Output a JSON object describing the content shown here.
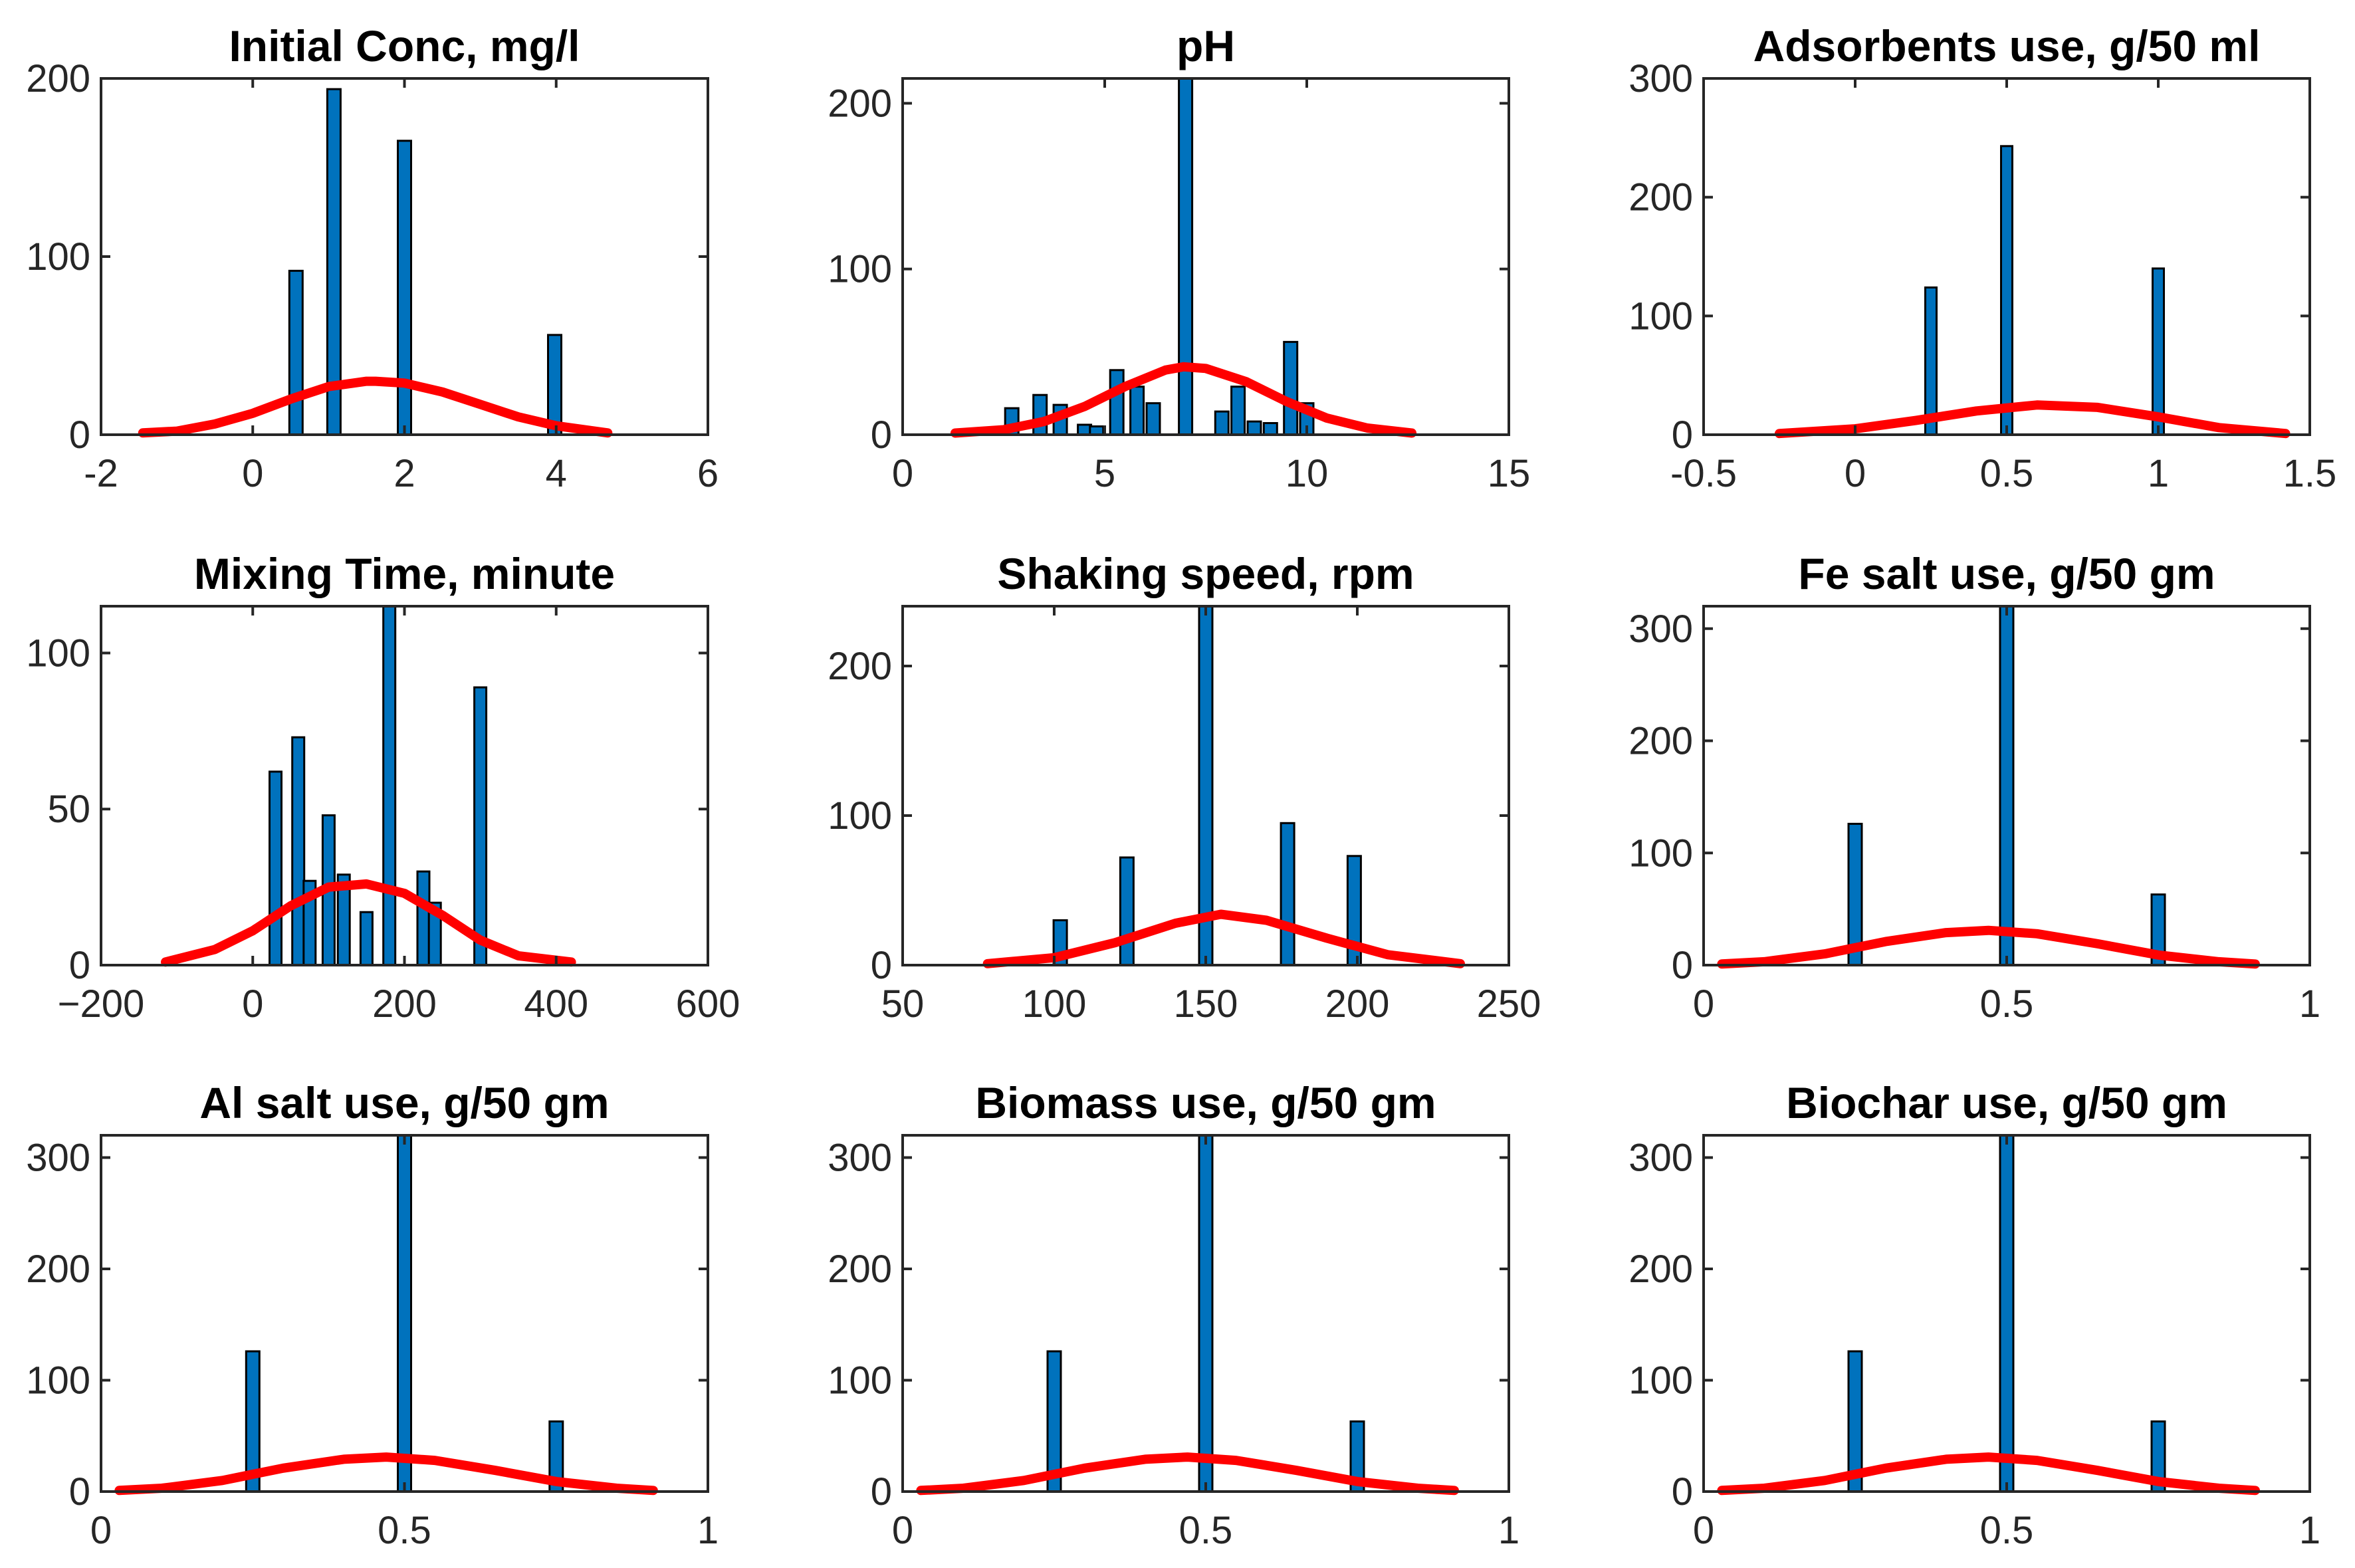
{
  "colors": {
    "bar": "#0072bd",
    "fit_line": "#ff0000",
    "axis": "#262626"
  },
  "chart_data": [
    {
      "type": "bar",
      "title": "Initial Conc, mg/l",
      "xlim": [
        -2,
        6
      ],
      "ylim": [
        0,
        200
      ],
      "xticks": [
        -2,
        0,
        2,
        4,
        6
      ],
      "yticks": [
        0,
        100,
        200
      ],
      "xtick_labels": [
        "-2",
        "0",
        "2",
        "4",
        "6"
      ],
      "ytick_labels": [
        "0",
        "100",
        "200"
      ],
      "bars": [
        {
          "x": 0.57,
          "value": 92
        },
        {
          "x": 1.07,
          "value": 194
        },
        {
          "x": 2.0,
          "value": 165
        },
        {
          "x": 3.98,
          "value": 56
        }
      ],
      "fit": {
        "x": [
          -1.45,
          -1.0,
          -0.5,
          0.0,
          0.5,
          1.0,
          1.5,
          1.62,
          2.0,
          2.5,
          3.0,
          3.5,
          4.0,
          4.68
        ],
        "y": [
          1,
          2,
          6,
          12,
          20,
          27,
          30,
          30,
          29,
          24,
          17,
          10,
          5,
          1
        ]
      }
    },
    {
      "type": "bar",
      "title": "pH",
      "xlim": [
        0,
        15
      ],
      "ylim": [
        0,
        215
      ],
      "xticks": [
        0,
        5,
        10,
        15
      ],
      "yticks": [
        0,
        100,
        200
      ],
      "xtick_labels": [
        "0",
        "5",
        "10",
        "15"
      ],
      "ytick_labels": [
        "0",
        "100",
        "200"
      ],
      "bars": [
        {
          "x": 2.7,
          "value": 16
        },
        {
          "x": 3.4,
          "value": 24
        },
        {
          "x": 3.9,
          "value": 18
        },
        {
          "x": 4.5,
          "value": 6
        },
        {
          "x": 4.8,
          "value": 5
        },
        {
          "x": 5.3,
          "value": 39
        },
        {
          "x": 5.8,
          "value": 29
        },
        {
          "x": 6.2,
          "value": 19
        },
        {
          "x": 7.0,
          "value": 215
        },
        {
          "x": 7.9,
          "value": 14
        },
        {
          "x": 8.3,
          "value": 29
        },
        {
          "x": 8.7,
          "value": 8
        },
        {
          "x": 9.1,
          "value": 7
        },
        {
          "x": 9.6,
          "value": 56
        },
        {
          "x": 10.0,
          "value": 19
        }
      ],
      "fit": {
        "x": [
          1.3,
          2.5,
          3.5,
          4.5,
          5.5,
          6.5,
          6.95,
          7.5,
          8.5,
          9.5,
          10.5,
          11.5,
          12.6
        ],
        "y": [
          1,
          3,
          8,
          17,
          29,
          39,
          41,
          40,
          32,
          20,
          10,
          4,
          1
        ]
      }
    },
    {
      "type": "bar",
      "title": "Adsorbents use, g/50 ml",
      "xlim": [
        -0.5,
        1.5
      ],
      "ylim": [
        0,
        300
      ],
      "xticks": [
        -0.5,
        0,
        0.5,
        1,
        1.5
      ],
      "yticks": [
        0,
        100,
        200,
        300
      ],
      "xtick_labels": [
        "-0.5",
        "0",
        "0.5",
        "1",
        "1.5"
      ],
      "ytick_labels": [
        "0",
        "100",
        "200",
        "300"
      ],
      "bars": [
        {
          "x": 0.25,
          "value": 124
        },
        {
          "x": 0.5,
          "value": 243
        },
        {
          "x": 1.0,
          "value": 140
        }
      ],
      "fit": {
        "x": [
          -0.25,
          0.0,
          0.2,
          0.4,
          0.6,
          0.8,
          1.0,
          1.2,
          1.42
        ],
        "y": [
          1,
          5,
          12,
          20,
          25,
          23,
          15,
          6,
          1
        ]
      }
    },
    {
      "type": "bar",
      "title": "Mixing Time, minute",
      "xlim": [
        -200,
        600
      ],
      "ylim": [
        0,
        115
      ],
      "xticks": [
        -200,
        0,
        200,
        400,
        600
      ],
      "yticks": [
        0,
        50,
        100
      ],
      "xtick_labels": [
        "−200",
        "0",
        "200",
        "400",
        "600"
      ],
      "ytick_labels": [
        "0",
        "50",
        "100"
      ],
      "bars": [
        {
          "x": 30,
          "value": 62
        },
        {
          "x": 60,
          "value": 73
        },
        {
          "x": 75,
          "value": 27
        },
        {
          "x": 100,
          "value": 48
        },
        {
          "x": 120,
          "value": 29
        },
        {
          "x": 150,
          "value": 17
        },
        {
          "x": 180,
          "value": 115
        },
        {
          "x": 225,
          "value": 30
        },
        {
          "x": 240,
          "value": 20
        },
        {
          "x": 300,
          "value": 89
        }
      ],
      "fit": {
        "x": [
          -115,
          -50,
          0,
          50,
          100,
          150,
          200,
          250,
          300,
          350,
          420
        ],
        "y": [
          1,
          5,
          11,
          19,
          25,
          26,
          23,
          16,
          8,
          3,
          1
        ]
      }
    },
    {
      "type": "bar",
      "title": "Shaking speed, rpm",
      "xlim": [
        50,
        250
      ],
      "ylim": [
        0,
        240
      ],
      "xticks": [
        50,
        100,
        150,
        200,
        250
      ],
      "yticks": [
        0,
        100,
        200
      ],
      "xtick_labels": [
        "50",
        "100",
        "150",
        "200",
        "250"
      ],
      "ytick_labels": [
        "0",
        "100",
        "200"
      ],
      "bars": [
        {
          "x": 102,
          "value": 30
        },
        {
          "x": 124,
          "value": 72
        },
        {
          "x": 150,
          "value": 240
        },
        {
          "x": 177,
          "value": 95
        },
        {
          "x": 199,
          "value": 73
        }
      ],
      "fit": {
        "x": [
          78,
          100,
          120,
          140,
          155,
          170,
          190,
          210,
          234
        ],
        "y": [
          1,
          5,
          15,
          28,
          34,
          30,
          18,
          7,
          1
        ]
      }
    },
    {
      "type": "bar",
      "title": "Fe salt use, g/50 gm",
      "xlim": [
        0,
        1
      ],
      "ylim": [
        0,
        320
      ],
      "xticks": [
        0,
        0.5,
        1
      ],
      "yticks": [
        0,
        100,
        200,
        300
      ],
      "xtick_labels": [
        "0",
        "0.5",
        "1"
      ],
      "ytick_labels": [
        "0",
        "100",
        "200",
        "300"
      ],
      "bars": [
        {
          "x": 0.25,
          "value": 126
        },
        {
          "x": 0.5,
          "value": 320
        },
        {
          "x": 0.75,
          "value": 63
        }
      ],
      "fit": {
        "x": [
          0.03,
          0.1,
          0.2,
          0.3,
          0.4,
          0.47,
          0.55,
          0.65,
          0.75,
          0.85,
          0.91
        ],
        "y": [
          1,
          3,
          10,
          21,
          29,
          31,
          28,
          19,
          9,
          3,
          1
        ]
      }
    },
    {
      "type": "bar",
      "title": "Al salt use, g/50 gm",
      "xlim": [
        0,
        1
      ],
      "ylim": [
        0,
        320
      ],
      "xticks": [
        0,
        0.5,
        1
      ],
      "yticks": [
        0,
        100,
        200,
        300
      ],
      "xtick_labels": [
        "0",
        "0.5",
        "1"
      ],
      "ytick_labels": [
        "0",
        "100",
        "200",
        "300"
      ],
      "bars": [
        {
          "x": 0.25,
          "value": 126
        },
        {
          "x": 0.5,
          "value": 320
        },
        {
          "x": 0.75,
          "value": 63
        }
      ],
      "fit": {
        "x": [
          0.03,
          0.1,
          0.2,
          0.3,
          0.4,
          0.47,
          0.55,
          0.65,
          0.75,
          0.85,
          0.91
        ],
        "y": [
          1,
          3,
          10,
          21,
          29,
          31,
          28,
          19,
          9,
          3,
          1
        ]
      }
    },
    {
      "type": "bar",
      "title": "Biomass use, g/50 gm",
      "xlim": [
        0,
        1
      ],
      "ylim": [
        0,
        320
      ],
      "xticks": [
        0,
        0.5,
        1
      ],
      "yticks": [
        0,
        100,
        200,
        300
      ],
      "xtick_labels": [
        "0",
        "0.5",
        "1"
      ],
      "ytick_labels": [
        "0",
        "100",
        "200",
        "300"
      ],
      "bars": [
        {
          "x": 0.25,
          "value": 126
        },
        {
          "x": 0.5,
          "value": 320
        },
        {
          "x": 0.75,
          "value": 63
        }
      ],
      "fit": {
        "x": [
          0.03,
          0.1,
          0.2,
          0.3,
          0.4,
          0.47,
          0.55,
          0.65,
          0.75,
          0.85,
          0.91
        ],
        "y": [
          1,
          3,
          10,
          21,
          29,
          31,
          28,
          19,
          9,
          3,
          1
        ]
      }
    },
    {
      "type": "bar",
      "title": "Biochar use, g/50 gm",
      "xlim": [
        0,
        1
      ],
      "ylim": [
        0,
        320
      ],
      "xticks": [
        0,
        0.5,
        1
      ],
      "yticks": [
        0,
        100,
        200,
        300
      ],
      "xtick_labels": [
        "0",
        "0.5",
        "1"
      ],
      "ytick_labels": [
        "0",
        "100",
        "200",
        "300"
      ],
      "bars": [
        {
          "x": 0.25,
          "value": 126
        },
        {
          "x": 0.5,
          "value": 320
        },
        {
          "x": 0.75,
          "value": 63
        }
      ],
      "fit": {
        "x": [
          0.03,
          0.1,
          0.2,
          0.3,
          0.4,
          0.47,
          0.55,
          0.65,
          0.75,
          0.85,
          0.91
        ],
        "y": [
          1,
          3,
          10,
          21,
          29,
          31,
          28,
          19,
          9,
          3,
          1
        ]
      }
    }
  ]
}
